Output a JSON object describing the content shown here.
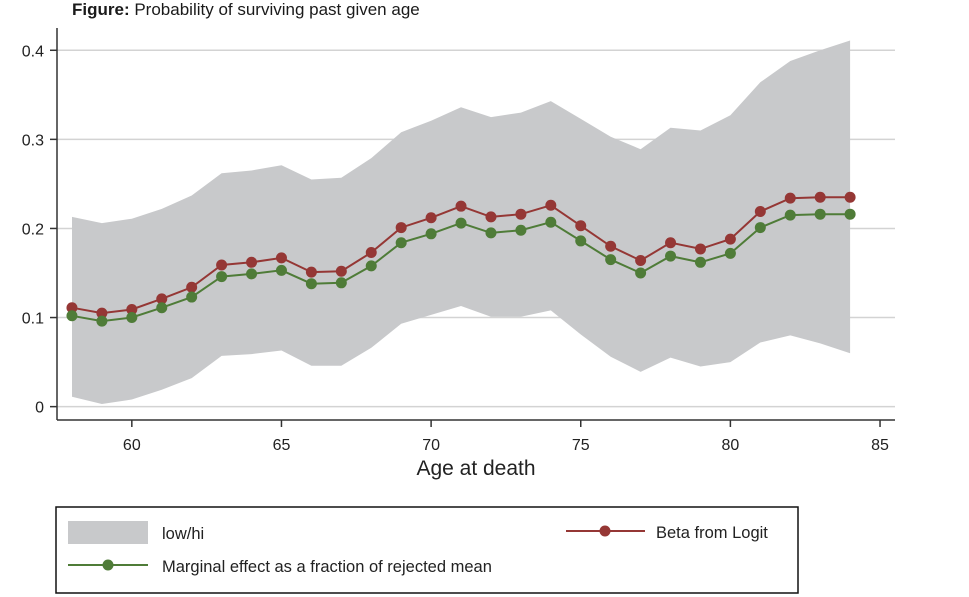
{
  "title_prefix": "Figure:",
  "title_text": "Probability of surviving past given age",
  "chart_data": {
    "type": "line",
    "xlabel": "Age at death",
    "ylabel": "",
    "xlim": [
      57.5,
      85.5
    ],
    "ylim": [
      -0.015,
      0.425
    ],
    "xticks": [
      60,
      65,
      70,
      75,
      80,
      85
    ],
    "yticks": [
      0,
      0.1,
      0.2,
      0.3,
      0.4
    ],
    "ytick_labels": [
      "0",
      "0.1",
      "0.2",
      "0.3",
      "0.4"
    ],
    "grid": true,
    "legend_position": "bottom",
    "x": [
      58,
      59,
      60,
      61,
      62,
      63,
      64,
      65,
      66,
      67,
      68,
      69,
      70,
      71,
      72,
      73,
      74,
      75,
      76,
      77,
      78,
      79,
      80,
      81,
      82,
      83,
      84
    ],
    "series": [
      {
        "name": "low/hi",
        "kind": "band",
        "color": "#c8c9cb",
        "low": [
          0.011,
          0.003,
          0.008,
          0.019,
          0.032,
          0.057,
          0.059,
          0.063,
          0.046,
          0.046,
          0.066,
          0.093,
          0.103,
          0.113,
          0.101,
          0.101,
          0.108,
          0.081,
          0.056,
          0.039,
          0.055,
          0.045,
          0.05,
          0.072,
          0.08,
          0.071,
          0.06
        ],
        "high": [
          0.213,
          0.206,
          0.211,
          0.222,
          0.237,
          0.262,
          0.265,
          0.271,
          0.255,
          0.257,
          0.279,
          0.308,
          0.321,
          0.336,
          0.325,
          0.33,
          0.343,
          0.323,
          0.303,
          0.289,
          0.313,
          0.31,
          0.327,
          0.364,
          0.388,
          0.4,
          0.411
        ]
      },
      {
        "name": "Beta from Logit",
        "kind": "line",
        "color": "#953735",
        "values": [
          0.111,
          0.105,
          0.109,
          0.121,
          0.134,
          0.159,
          0.162,
          0.167,
          0.151,
          0.152,
          0.173,
          0.201,
          0.212,
          0.225,
          0.213,
          0.216,
          0.226,
          0.203,
          0.18,
          0.164,
          0.184,
          0.177,
          0.188,
          0.219,
          0.234,
          0.235,
          0.235
        ]
      },
      {
        "name": "Marginal effect as a fraction of rejected mean",
        "kind": "line",
        "color": "#4f7c38",
        "values": [
          0.102,
          0.096,
          0.1,
          0.111,
          0.123,
          0.146,
          0.149,
          0.153,
          0.138,
          0.139,
          0.158,
          0.184,
          0.194,
          0.206,
          0.195,
          0.198,
          0.207,
          0.186,
          0.165,
          0.15,
          0.169,
          0.162,
          0.172,
          0.201,
          0.215,
          0.216,
          0.216
        ]
      }
    ],
    "legend": [
      {
        "label": "low/hi"
      },
      {
        "label": "Beta from Logit"
      },
      {
        "label": "Marginal effect as a fraction of rejected mean"
      }
    ]
  }
}
